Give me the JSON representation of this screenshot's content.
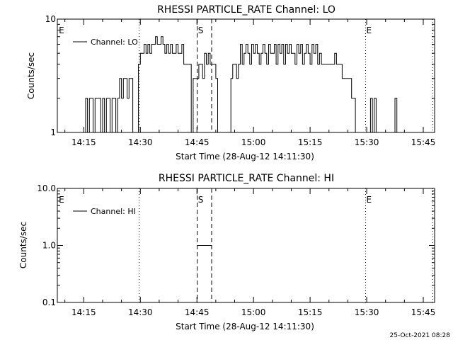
{
  "footer": {
    "timestamp": "25-Oct-2021 08:28"
  },
  "chart_data": [
    {
      "type": "line",
      "title": "RHESSI PARTICLE_RATE Channel: LO",
      "xlabel": "Start Time (28-Aug-12 14:11:30)",
      "ylabel": "Counts/sec",
      "yscale": "log",
      "ylim": [
        1,
        10
      ],
      "y_tick_values": [
        1,
        10
      ],
      "y_tick_labels": [
        "1",
        "10"
      ],
      "xlim_minutes_after_start": [
        -3.5,
        96.5
      ],
      "x_tick_values_minutes": [
        3.5,
        18.5,
        33.5,
        48.5,
        63.5,
        78.5,
        93.5
      ],
      "x_tick_labels": [
        "14:15",
        "14:30",
        "14:45",
        "15:00",
        "15:15",
        "15:30",
        "15:45"
      ],
      "legend": {
        "position": "top-left",
        "entries": [
          "Channel: LO"
        ]
      },
      "grid": false,
      "vertical_markers": [
        {
          "t": 18.2,
          "style": "dotted",
          "label": ""
        },
        {
          "t": 33.6,
          "style": "dashed",
          "label": "S"
        },
        {
          "t": 37.4,
          "style": "dashed",
          "label": ""
        },
        {
          "t": 78.2,
          "style": "dotted",
          "label": "E"
        },
        {
          "t": 96.0,
          "style": "dotted",
          "label": ""
        },
        {
          "t": -3.3,
          "style": "none",
          "label": "E"
        }
      ],
      "series": [
        {
          "name": "Channel: LO",
          "x_start": 1.0,
          "x_step": 0.5,
          "values": [
            1,
            1,
            1,
            1,
            1,
            1,
            2,
            1,
            2,
            2,
            1,
            2,
            2,
            2,
            1,
            2,
            1,
            2,
            2,
            1,
            2,
            2,
            1,
            2,
            3,
            2,
            3,
            3,
            2,
            3,
            3,
            1,
            1,
            1,
            4,
            5,
            5,
            6,
            5,
            6,
            5,
            6,
            6,
            7,
            6,
            6,
            7,
            6,
            5,
            6,
            5,
            6,
            5,
            5,
            6,
            5,
            5,
            6,
            4,
            4,
            4,
            4,
            1,
            3,
            3,
            3,
            4,
            4,
            3,
            5,
            4,
            5,
            4,
            4,
            4,
            3,
            1,
            1,
            1,
            1,
            1,
            1,
            1,
            3,
            4,
            4,
            3,
            4,
            6,
            4,
            5,
            6,
            5,
            4,
            6,
            5,
            6,
            5,
            4,
            5,
            6,
            5,
            4,
            6,
            5,
            5,
            6,
            4,
            6,
            5,
            6,
            4,
            6,
            5,
            6,
            5,
            5,
            4,
            6,
            5,
            6,
            4,
            5,
            6,
            5,
            4,
            6,
            5,
            6,
            4,
            5,
            4,
            4,
            4,
            4,
            4,
            4,
            4,
            5,
            4,
            4,
            4,
            3,
            3,
            3,
            3,
            3,
            2,
            2,
            1,
            1,
            1,
            1,
            1,
            1,
            1,
            1,
            2,
            1,
            2,
            1,
            1,
            1,
            1,
            1,
            1,
            1,
            1,
            1,
            1,
            2,
            1
          ]
        }
      ]
    },
    {
      "type": "line",
      "title": "RHESSI PARTICLE_RATE Channel: HI",
      "xlabel": "Start Time (28-Aug-12 14:11:30)",
      "ylabel": "Counts/sec",
      "yscale": "log",
      "ylim": [
        0.1,
        10
      ],
      "y_tick_values": [
        0.1,
        1,
        10
      ],
      "y_tick_labels": [
        "0.1",
        "1.0",
        "10.0"
      ],
      "xlim_minutes_after_start": [
        -3.5,
        96.5
      ],
      "x_tick_values_minutes": [
        3.5,
        18.5,
        33.5,
        48.5,
        63.5,
        78.5,
        93.5
      ],
      "x_tick_labels": [
        "14:15",
        "14:30",
        "14:45",
        "15:00",
        "15:15",
        "15:30",
        "15:45"
      ],
      "legend": {
        "position": "top-left",
        "entries": [
          "Channel: HI"
        ]
      },
      "grid": false,
      "vertical_markers": [
        {
          "t": 18.2,
          "style": "dotted",
          "label": ""
        },
        {
          "t": 33.6,
          "style": "dashed",
          "label": "S"
        },
        {
          "t": 37.4,
          "style": "dashed",
          "label": ""
        },
        {
          "t": 78.2,
          "style": "dotted",
          "label": "E"
        },
        {
          "t": 96.0,
          "style": "dotted",
          "label": ""
        },
        {
          "t": -3.3,
          "style": "none",
          "label": "E"
        }
      ],
      "series": [
        {
          "name": "Channel: HI",
          "x": [
            33.6,
            37.4
          ],
          "values": [
            1,
            1
          ]
        }
      ]
    }
  ]
}
